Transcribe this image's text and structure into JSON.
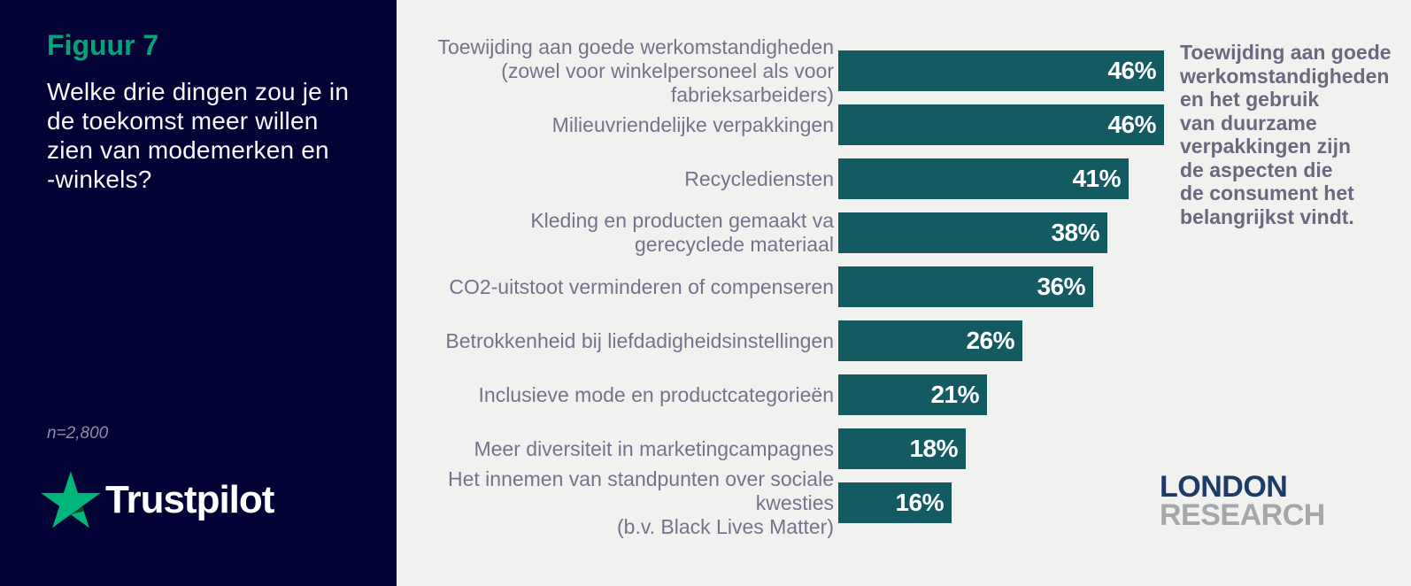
{
  "left_panel": {
    "figure_label": "Figuur 7",
    "question": "Welke drie dingen zou je in\nde toekomst meer willen\nzien van modemerken en\n-winkels?",
    "sample_size": "n=2,800",
    "trustpilot_logo_text": "Trustpilot"
  },
  "chart_data": {
    "type": "bar",
    "orientation": "horizontal",
    "title": "Welke drie dingen zou je in de toekomst meer willen zien van modemerken en -winkels?",
    "unit": "%",
    "xlim": [
      0,
      50
    ],
    "grid": false,
    "bar_color": "#135a63",
    "categories": [
      "Toewijding aan goede werkomstandigheden\n(zowel voor winkelpersoneel als voor fabrieksarbeiders)",
      "Milieuvriendelijke verpakkingen",
      "Recyclediensten",
      "Kleding en producten gemaakt va\ngerecyclede materiaal",
      "CO2-uitstoot verminderen of compenseren",
      "Betrokkenheid bij liefdadigheidsinstellingen",
      "Inclusieve mode en productcategorieën",
      "Meer diversiteit in marketingcampagnes",
      "Het innemen van standpunten over sociale kwesties\n(b.v. Black Lives Matter)"
    ],
    "values": [
      46,
      46,
      41,
      38,
      36,
      26,
      21,
      18,
      16
    ]
  },
  "summary": {
    "text": "Toewijding aan goede\nwerkomstandigheden\nen het gebruik\nvan duurzame\nverpakkingen zijn\nde aspecten die\nde consument het\nbelangrijkst vindt."
  },
  "footer_logo": {
    "line1": "LONDON",
    "line2": "RESEARCH"
  },
  "colors": {
    "left_panel_bg": "#030235",
    "figure_label": "#00a67a",
    "chart_bg": "#f1f2f0",
    "bar": "#135a63",
    "category_label": "#76728b",
    "summary_text": "#6b6880",
    "trustpilot_green": "#00b67a",
    "trustpilot_dark_green": "#005128",
    "london_navy": "#1d3b66",
    "research_gray": "#a5a7aa"
  }
}
